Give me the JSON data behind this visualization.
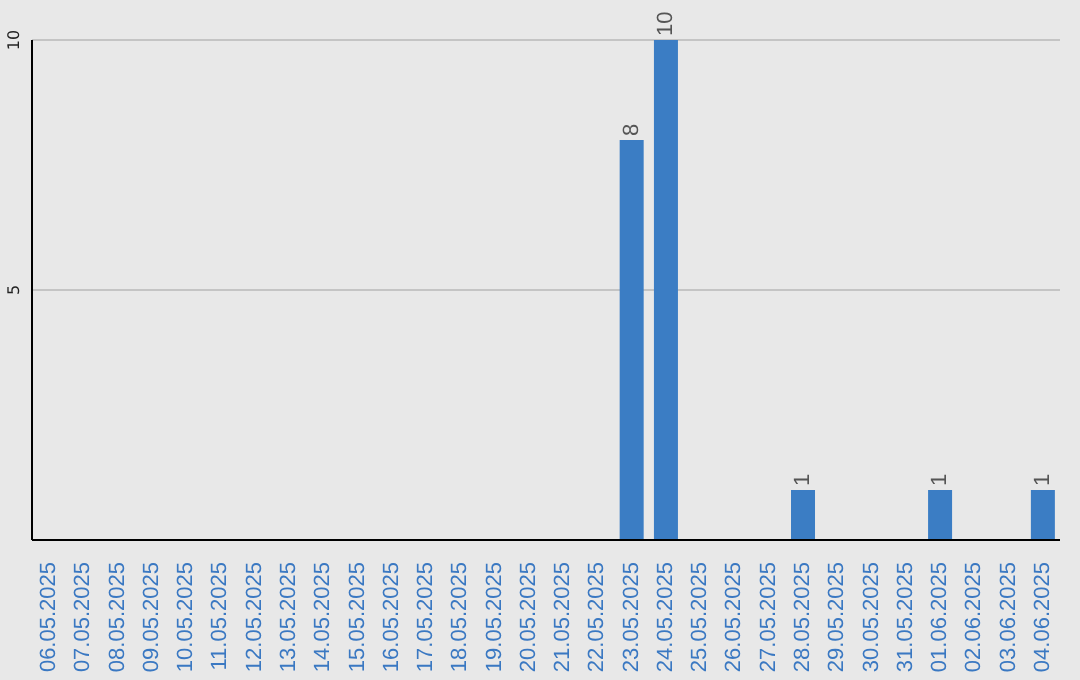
{
  "chart_data": {
    "type": "bar",
    "categories": [
      "06.05.2025",
      "07.05.2025",
      "08.05.2025",
      "09.05.2025",
      "10.05.2025",
      "11.05.2025",
      "12.05.2025",
      "13.05.2025",
      "14.05.2025",
      "15.05.2025",
      "16.05.2025",
      "17.05.2025",
      "18.05.2025",
      "19.05.2025",
      "20.05.2025",
      "21.05.2025",
      "22.05.2025",
      "23.05.2025",
      "24.05.2025",
      "25.05.2025",
      "26.05.2025",
      "27.05.2025",
      "28.05.2025",
      "29.05.2025",
      "30.05.2025",
      "31.05.2025",
      "01.06.2025",
      "02.06.2025",
      "03.06.2025",
      "04.06.2025"
    ],
    "values": [
      0,
      0,
      0,
      0,
      0,
      0,
      0,
      0,
      0,
      0,
      0,
      0,
      0,
      0,
      0,
      0,
      0,
      8,
      10,
      0,
      0,
      0,
      1,
      0,
      0,
      0,
      1,
      0,
      0,
      1
    ],
    "value_labels": [
      null,
      null,
      null,
      null,
      null,
      null,
      null,
      null,
      null,
      null,
      null,
      null,
      null,
      null,
      null,
      null,
      null,
      "8",
      "10",
      null,
      null,
      null,
      "1",
      null,
      null,
      null,
      "1",
      null,
      null,
      "1"
    ],
    "color": "#3b7dc4",
    "ylim": [
      0,
      10
    ],
    "yticks": [
      5,
      10
    ],
    "grid": "y"
  }
}
